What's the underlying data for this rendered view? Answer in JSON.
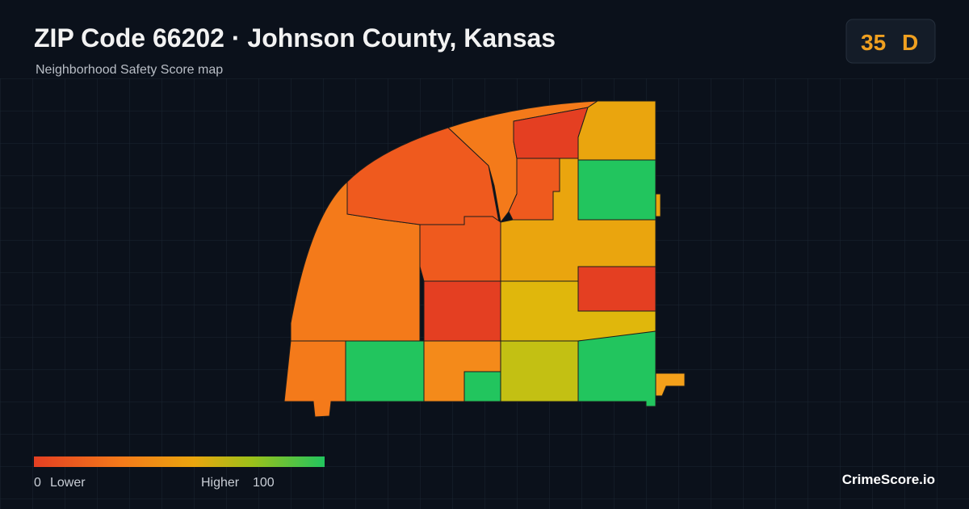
{
  "header": {
    "title": "ZIP Code 66202 · Johnson County, Kansas",
    "subtitle": "Neighborhood Safety Score map"
  },
  "badge": {
    "score": 35,
    "grade": "D"
  },
  "legend": {
    "min": 0,
    "min_label": "Lower",
    "max_label": "Higher",
    "max": 100
  },
  "footer": {
    "brand": "CrimeScore.io"
  }
}
